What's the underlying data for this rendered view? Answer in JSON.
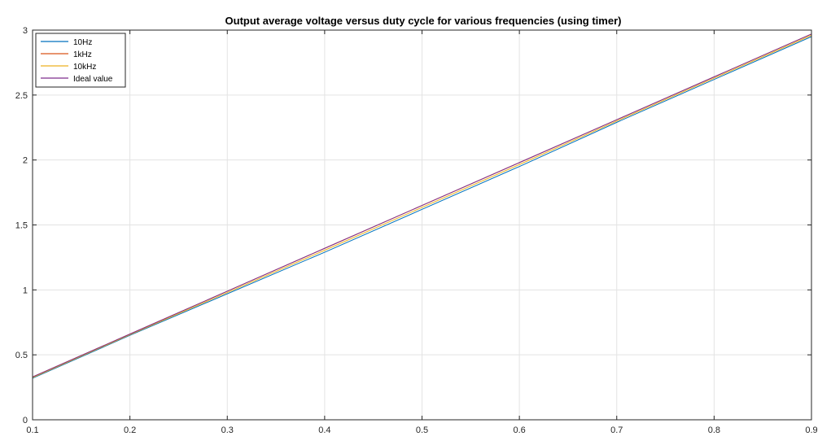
{
  "chart_data": {
    "type": "line",
    "title": "Output average voltage versus duty cycle for various frequencies (using timer)",
    "xlabel": "",
    "ylabel": "",
    "xlim": [
      0.1,
      0.9
    ],
    "ylim": [
      0,
      3
    ],
    "xticks": [
      "0.1",
      "0.2",
      "0.3",
      "0.4",
      "0.5",
      "0.6",
      "0.7",
      "0.8",
      "0.9"
    ],
    "yticks": [
      "0",
      "0.5",
      "1",
      "1.5",
      "2",
      "2.5",
      "3"
    ],
    "grid": true,
    "legend": "top-left",
    "x": [
      0.1,
      0.2,
      0.3,
      0.4,
      0.5,
      0.6,
      0.7,
      0.8,
      0.9
    ],
    "series": [
      {
        "name": "10Hz",
        "color": "#0072bd",
        "values": [
          0.32,
          0.65,
          0.97,
          1.29,
          1.62,
          1.95,
          2.29,
          2.62,
          2.95
        ]
      },
      {
        "name": "1kHz",
        "color": "#d95319",
        "values": [
          0.33,
          0.66,
          0.99,
          1.32,
          1.65,
          1.98,
          2.31,
          2.64,
          2.97
        ]
      },
      {
        "name": "10kHz",
        "color": "#edb120",
        "values": [
          0.325,
          0.655,
          0.98,
          1.305,
          1.635,
          1.965,
          2.3,
          2.63,
          2.96
        ]
      },
      {
        "name": "Ideal value",
        "color": "#7e2f8e",
        "values": [
          0.33,
          0.66,
          0.99,
          1.32,
          1.65,
          1.98,
          2.31,
          2.64,
          2.97
        ]
      }
    ]
  }
}
